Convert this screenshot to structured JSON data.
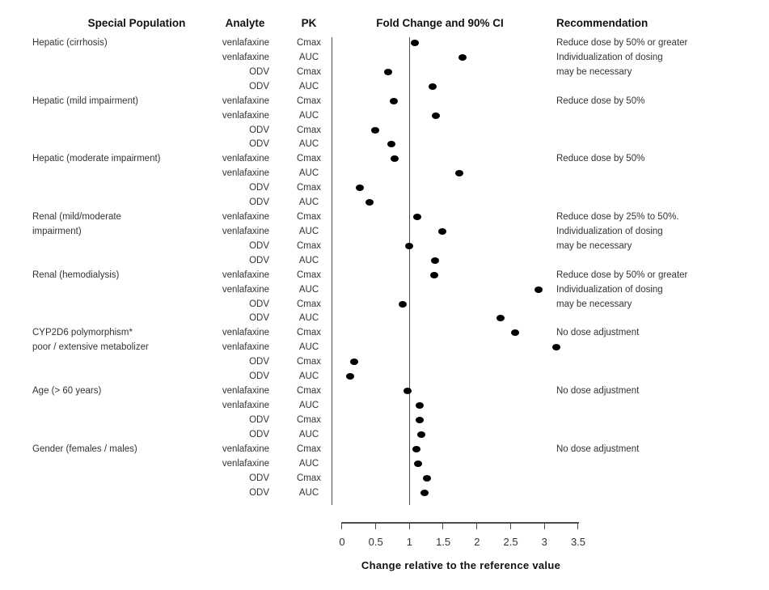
{
  "header": {
    "special_population": "Special Population",
    "analyte": "Analyte",
    "pk": "PK",
    "fold_change": "Fold Change and 90% CI",
    "recommendation": "Recommendation"
  },
  "axis": {
    "title": "Change relative to the reference value",
    "ticks": [
      "0",
      "0.5",
      "1",
      "1.5",
      "2",
      "2.5",
      "3",
      "3.5"
    ],
    "tick_values": [
      0,
      0.5,
      1,
      1.5,
      2,
      2.5,
      3,
      3.5
    ],
    "range": [
      0,
      3.5
    ],
    "reference_value": 1
  },
  "colors": {
    "dot": "#000000",
    "line": "#4d4d4d",
    "text": "#333333"
  },
  "chart_data": {
    "type": "scatter",
    "subtype": "forest-dot-plot",
    "title": "Fold Change and 90% CI",
    "xlabel": "Change relative to the reference value",
    "xlim": [
      0,
      3.5
    ],
    "x_ticks": [
      0,
      0.5,
      1,
      1.5,
      2,
      2.5,
      3,
      3.5
    ],
    "reference_line_x": 1,
    "grid": false,
    "groups": [
      {
        "population": [
          "Hepatic (cirrhosis)"
        ],
        "recommendation": [
          "Reduce dose by 50% or greater",
          "Individualization of dosing",
          "may be necessary"
        ],
        "rows": [
          {
            "analyte": "venlafaxine",
            "pk": "Cmax",
            "fold_change": 1.08
          },
          {
            "analyte": "venlafaxine",
            "pk": "AUC",
            "fold_change": 1.79
          },
          {
            "analyte": "ODV",
            "pk": "Cmax",
            "fold_change": 0.68
          },
          {
            "analyte": "ODV",
            "pk": "AUC",
            "fold_change": 1.34
          }
        ]
      },
      {
        "population": [
          "Hepatic (mild impairment)"
        ],
        "recommendation": [
          "Reduce dose by 50%"
        ],
        "rows": [
          {
            "analyte": "venlafaxine",
            "pk": "Cmax",
            "fold_change": 0.77
          },
          {
            "analyte": "venlafaxine",
            "pk": "AUC",
            "fold_change": 1.39
          },
          {
            "analyte": "ODV",
            "pk": "Cmax",
            "fold_change": 0.49
          },
          {
            "analyte": "ODV",
            "pk": "AUC",
            "fold_change": 0.73
          }
        ]
      },
      {
        "population": [
          "Hepatic (moderate impairment)"
        ],
        "recommendation": [
          "Reduce dose by 50%"
        ],
        "rows": [
          {
            "analyte": "venlafaxine",
            "pk": "Cmax",
            "fold_change": 0.78
          },
          {
            "analyte": "venlafaxine",
            "pk": "AUC",
            "fold_change": 1.74
          },
          {
            "analyte": "ODV",
            "pk": "Cmax",
            "fold_change": 0.26
          },
          {
            "analyte": "ODV",
            "pk": "AUC",
            "fold_change": 0.41
          }
        ]
      },
      {
        "population": [
          "Renal (mild/moderate",
          "impairment)"
        ],
        "recommendation": [
          "Reduce dose by 25% to 50%.",
          "Individualization of dosing",
          "may be necessary"
        ],
        "rows": [
          {
            "analyte": "venlafaxine",
            "pk": "Cmax",
            "fold_change": 1.12
          },
          {
            "analyte": "venlafaxine",
            "pk": "AUC",
            "fold_change": 1.49
          },
          {
            "analyte": "ODV",
            "pk": "Cmax",
            "fold_change": 1.0
          },
          {
            "analyte": "ODV",
            "pk": "AUC",
            "fold_change": 1.38
          }
        ]
      },
      {
        "population": [
          "Renal (hemodialysis)"
        ],
        "recommendation": [
          "Reduce dose by 50% or greater",
          "Individualization of dosing",
          "may be necessary"
        ],
        "rows": [
          {
            "analyte": "venlafaxine",
            "pk": "Cmax",
            "fold_change": 1.37
          },
          {
            "analyte": "venlafaxine",
            "pk": "AUC",
            "fold_change": 2.91
          },
          {
            "analyte": "ODV",
            "pk": "Cmax",
            "fold_change": 0.9
          },
          {
            "analyte": "ODV",
            "pk": "AUC",
            "fold_change": 2.35
          }
        ]
      },
      {
        "population": [
          "CYP2D6 polymorphism*",
          "poor / extensive metabolizer"
        ],
        "recommendation": [
          "No dose adjustment"
        ],
        "rows": [
          {
            "analyte": "venlafaxine",
            "pk": "Cmax",
            "fold_change": 2.57
          },
          {
            "analyte": "venlafaxine",
            "pk": "AUC",
            "fold_change": 3.18
          },
          {
            "analyte": "ODV",
            "pk": "Cmax",
            "fold_change": 0.18
          },
          {
            "analyte": "ODV",
            "pk": "AUC",
            "fold_change": 0.12
          }
        ]
      },
      {
        "population": [
          "Age (> 60 years)"
        ],
        "recommendation": [
          "No dose adjustment"
        ],
        "rows": [
          {
            "analyte": "venlafaxine",
            "pk": "Cmax",
            "fold_change": 0.97
          },
          {
            "analyte": "venlafaxine",
            "pk": "AUC",
            "fold_change": 1.15
          },
          {
            "analyte": "ODV",
            "pk": "Cmax",
            "fold_change": 1.15
          },
          {
            "analyte": "ODV",
            "pk": "AUC",
            "fold_change": 1.18
          }
        ]
      },
      {
        "population": [
          "Gender (females / males)"
        ],
        "recommendation": [
          "No dose adjustment"
        ],
        "rows": [
          {
            "analyte": "venlafaxine",
            "pk": "Cmax",
            "fold_change": 1.1
          },
          {
            "analyte": "venlafaxine",
            "pk": "AUC",
            "fold_change": 1.13
          },
          {
            "analyte": "ODV",
            "pk": "Cmax",
            "fold_change": 1.26
          },
          {
            "analyte": "ODV",
            "pk": "AUC",
            "fold_change": 1.22
          }
        ]
      }
    ]
  }
}
